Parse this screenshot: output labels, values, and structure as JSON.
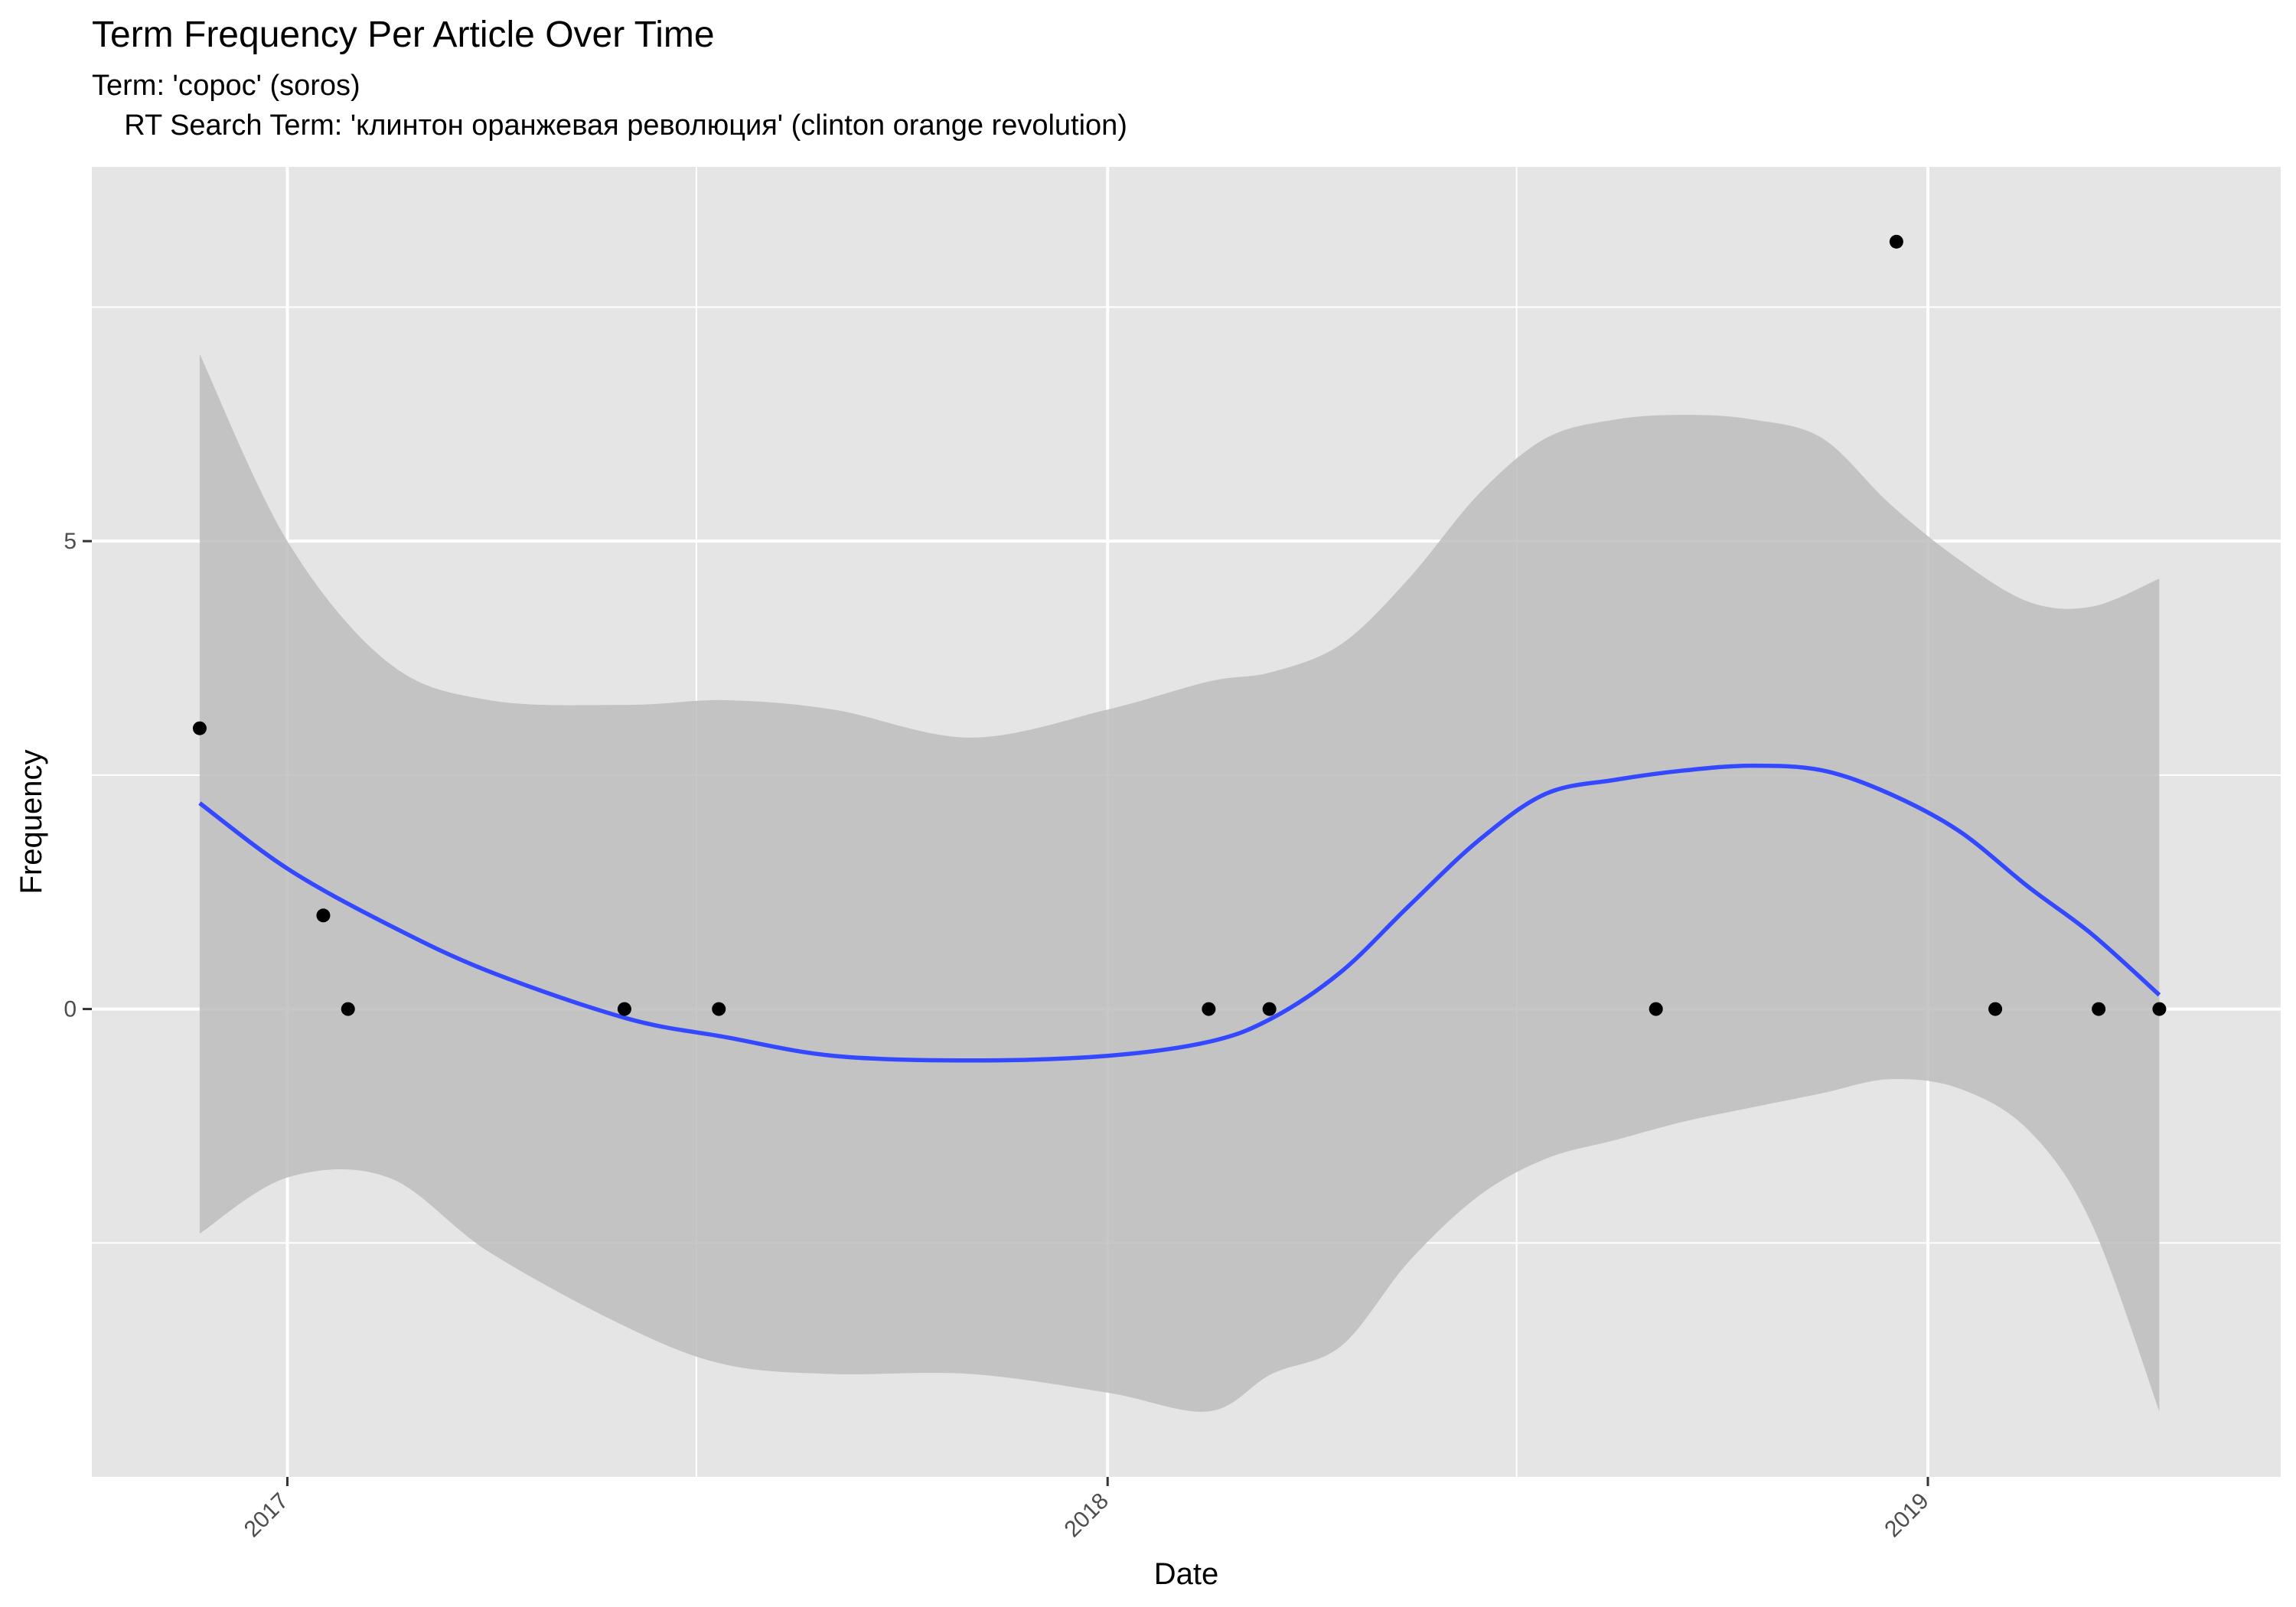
{
  "chart_data": {
    "type": "scatter",
    "title": "Term Frequency Per Article Over Time",
    "subtitle_line1": "Term: 'сорос' (soros)",
    "subtitle_line2": "RT Search Term: 'клинтон оранжевая революция' (clinton orange revolution)",
    "xlabel": "Date",
    "ylabel": "Frequency",
    "x_ticks": [
      "2017",
      "2018",
      "2019"
    ],
    "y_ticks": [
      "0",
      "5"
    ],
    "xlim": [
      "2016-10-06",
      "2019-06-07"
    ],
    "ylim": [
      -5,
      9
    ],
    "grid": true,
    "colors": {
      "panel": "#e5e5e5",
      "grid": "#ffffff",
      "points": "#000000",
      "smooth": "#3348ff",
      "ribbon": "#bdbdbd"
    },
    "series": [
      {
        "type": "points",
        "points": [
          {
            "x": "2016-11-23",
            "y": 3
          },
          {
            "x": "2017-01-17",
            "y": 1
          },
          {
            "x": "2017-01-28",
            "y": 0
          },
          {
            "x": "2017-05-31",
            "y": 0
          },
          {
            "x": "2017-07-12",
            "y": 0
          },
          {
            "x": "2018-02-15",
            "y": 0
          },
          {
            "x": "2018-03-14",
            "y": 0
          },
          {
            "x": "2018-09-02",
            "y": 0
          },
          {
            "x": "2018-12-18",
            "y": 8.2
          },
          {
            "x": "2019-01-31",
            "y": 0
          },
          {
            "x": "2019-03-18",
            "y": 0
          },
          {
            "x": "2019-04-14",
            "y": 0
          }
        ]
      },
      {
        "type": "smooth",
        "fit": [
          {
            "x": "2016-11-23",
            "y": 2.2,
            "lo": -2.4,
            "hi": 7.0
          },
          {
            "x": "2017-01-01",
            "y": 1.5,
            "lo": -1.8,
            "hi": 5.0
          },
          {
            "x": "2017-02-15",
            "y": 0.9,
            "lo": -1.8,
            "hi": 3.7
          },
          {
            "x": "2017-04-01",
            "y": 0.4,
            "lo": -2.6,
            "hi": 3.3
          },
          {
            "x": "2017-06-01",
            "y": -0.1,
            "lo": -3.4,
            "hi": 3.25
          },
          {
            "x": "2017-07-15",
            "y": -0.3,
            "lo": -3.8,
            "hi": 3.3
          },
          {
            "x": "2017-09-01",
            "y": -0.5,
            "lo": -3.9,
            "hi": 3.2
          },
          {
            "x": "2017-11-01",
            "y": -0.55,
            "lo": -3.9,
            "hi": 2.9
          },
          {
            "x": "2018-01-01",
            "y": -0.5,
            "lo": -4.1,
            "hi": 3.2
          },
          {
            "x": "2018-02-15",
            "y": -0.35,
            "lo": -4.3,
            "hi": 3.5
          },
          {
            "x": "2018-03-15",
            "y": -0.1,
            "lo": -3.9,
            "hi": 3.6
          },
          {
            "x": "2018-04-15",
            "y": 0.4,
            "lo": -3.6,
            "hi": 3.9
          },
          {
            "x": "2018-05-15",
            "y": 1.1,
            "lo": -2.7,
            "hi": 4.6
          },
          {
            "x": "2018-06-15",
            "y": 1.8,
            "lo": -2.0,
            "hi": 5.5
          },
          {
            "x": "2018-07-15",
            "y": 2.3,
            "lo": -1.6,
            "hi": 6.1
          },
          {
            "x": "2018-08-15",
            "y": 2.45,
            "lo": -1.4,
            "hi": 6.3
          },
          {
            "x": "2018-09-15",
            "y": 2.55,
            "lo": -1.2,
            "hi": 6.35
          },
          {
            "x": "2018-10-15",
            "y": 2.6,
            "lo": -1.05,
            "hi": 6.3
          },
          {
            "x": "2018-11-15",
            "y": 2.55,
            "lo": -0.9,
            "hi": 6.1
          },
          {
            "x": "2018-12-15",
            "y": 2.3,
            "lo": -0.75,
            "hi": 5.4
          },
          {
            "x": "2019-01-15",
            "y": 1.9,
            "lo": -0.85,
            "hi": 4.8
          },
          {
            "x": "2019-02-15",
            "y": 1.3,
            "lo": -1.3,
            "hi": 4.35
          },
          {
            "x": "2019-03-15",
            "y": 0.8,
            "lo": -2.3,
            "hi": 4.3
          },
          {
            "x": "2019-04-14",
            "y": 0.15,
            "lo": -4.3,
            "hi": 4.6
          }
        ]
      }
    ]
  }
}
